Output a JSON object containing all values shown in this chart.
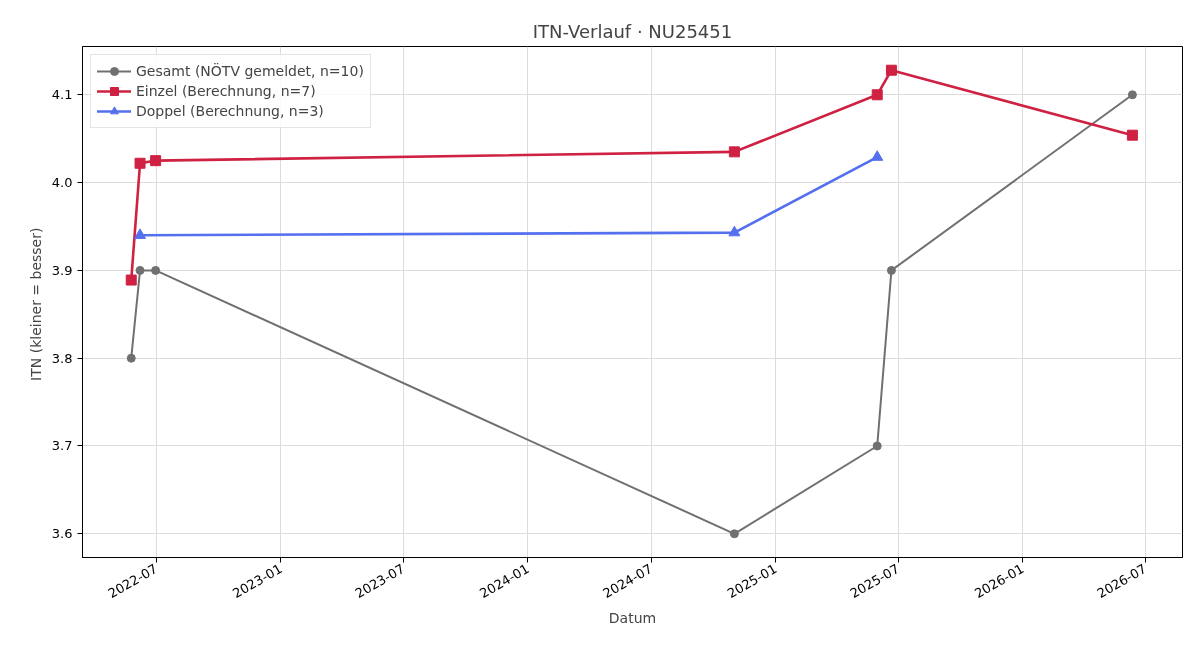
{
  "chart_data": {
    "type": "line",
    "title": "ITN-Verlauf · NU25451",
    "xlabel": "Datum",
    "ylabel": "ITN  (kleiner = besser)",
    "xlim": [
      "2022-03-14",
      "2026-08-25"
    ],
    "xticks": [
      "2022-07",
      "2023-01",
      "2023-07",
      "2024-01",
      "2024-07",
      "2025-01",
      "2025-07",
      "2026-01",
      "2026-07"
    ],
    "ylim": [
      3.573,
      4.155
    ],
    "yticks": [
      3.6,
      3.7,
      3.8,
      3.9,
      {
        "value": 4.0,
        "label": "4.0"
      },
      4.1
    ],
    "grid": true,
    "legend": "top left",
    "line_style": "solid",
    "series": [
      {
        "name": "Gesamt (NÖTV gemeldet, n=10)",
        "color": "#707070",
        "marker": "circle",
        "x": [
          "2022-05-25",
          "2022-06-07",
          "2022-06-30",
          "2024-11-01",
          "2025-05-31",
          "2025-06-21",
          "2026-06-12"
        ],
        "values": [
          3.8,
          3.9,
          3.9,
          3.6,
          3.7,
          3.9,
          4.1
        ]
      },
      {
        "name": "Einzel (Berechnung, n=7)",
        "color": "#cf2142",
        "marker": "square",
        "x": [
          "2022-05-25",
          "2022-06-07",
          "2022-06-30",
          "2024-11-01",
          "2025-05-31",
          "2025-06-21",
          "2026-06-12"
        ],
        "values": [
          3.889,
          4.022,
          4.025,
          4.035,
          4.1,
          4.128,
          4.054
        ]
      },
      {
        "name": "Doppel (Berechnung, n=3)",
        "color": "#5470ee",
        "marker": "triangle",
        "x": [
          "2022-06-07",
          "2024-11-01",
          "2025-05-31"
        ],
        "values": [
          3.94,
          3.943,
          4.029
        ]
      }
    ]
  }
}
